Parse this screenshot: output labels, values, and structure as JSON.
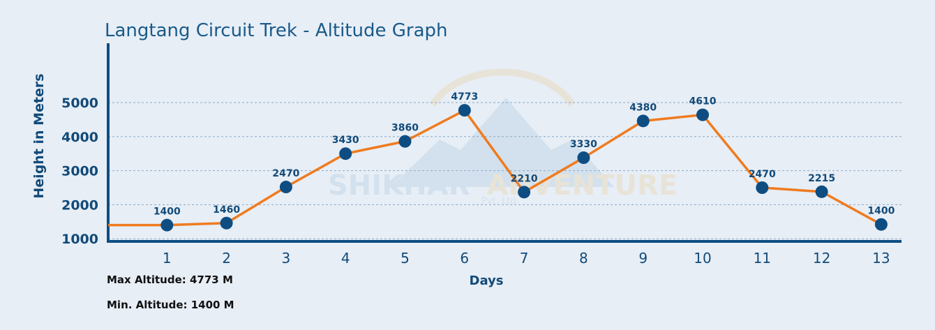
{
  "chart_data": {
    "type": "line",
    "title": "Langtang Circuit Trek - Altitude Graph",
    "xlabel": "Days",
    "ylabel": "Height in Meters",
    "x": [
      1,
      2,
      3,
      4,
      5,
      6,
      7,
      8,
      9,
      10,
      11,
      12,
      13
    ],
    "values": [
      1400,
      1460,
      2470,
      3430,
      3860,
      4773,
      2210,
      3330,
      4380,
      4610,
      2470,
      2215,
      1400
    ],
    "plotted_values": [
      1400,
      1460,
      2520,
      3500,
      3860,
      4773,
      2370,
      3380,
      4460,
      4640,
      2500,
      2380,
      1420
    ],
    "start_value": 1400,
    "y_ticks": [
      1000,
      2000,
      3000,
      4000,
      5000
    ],
    "ylim": [
      0,
      5500
    ],
    "xlim": [
      0,
      13.4
    ],
    "grid": "horizontal dashed",
    "colors": {
      "line": "#ef7b1f",
      "marker": "#0e4d82",
      "axis": "#0e4d82",
      "grid": "#8aa8c4",
      "background": "#e7eef6"
    }
  },
  "watermark": {
    "main_1": "SHIKHAR",
    "main_2": "ADVENTURE",
    "sub": "Pvt. Ltd."
  },
  "stats": {
    "max": "Max Altitude: 4773 M",
    "min": "Min. Altitude: 1400 M"
  }
}
